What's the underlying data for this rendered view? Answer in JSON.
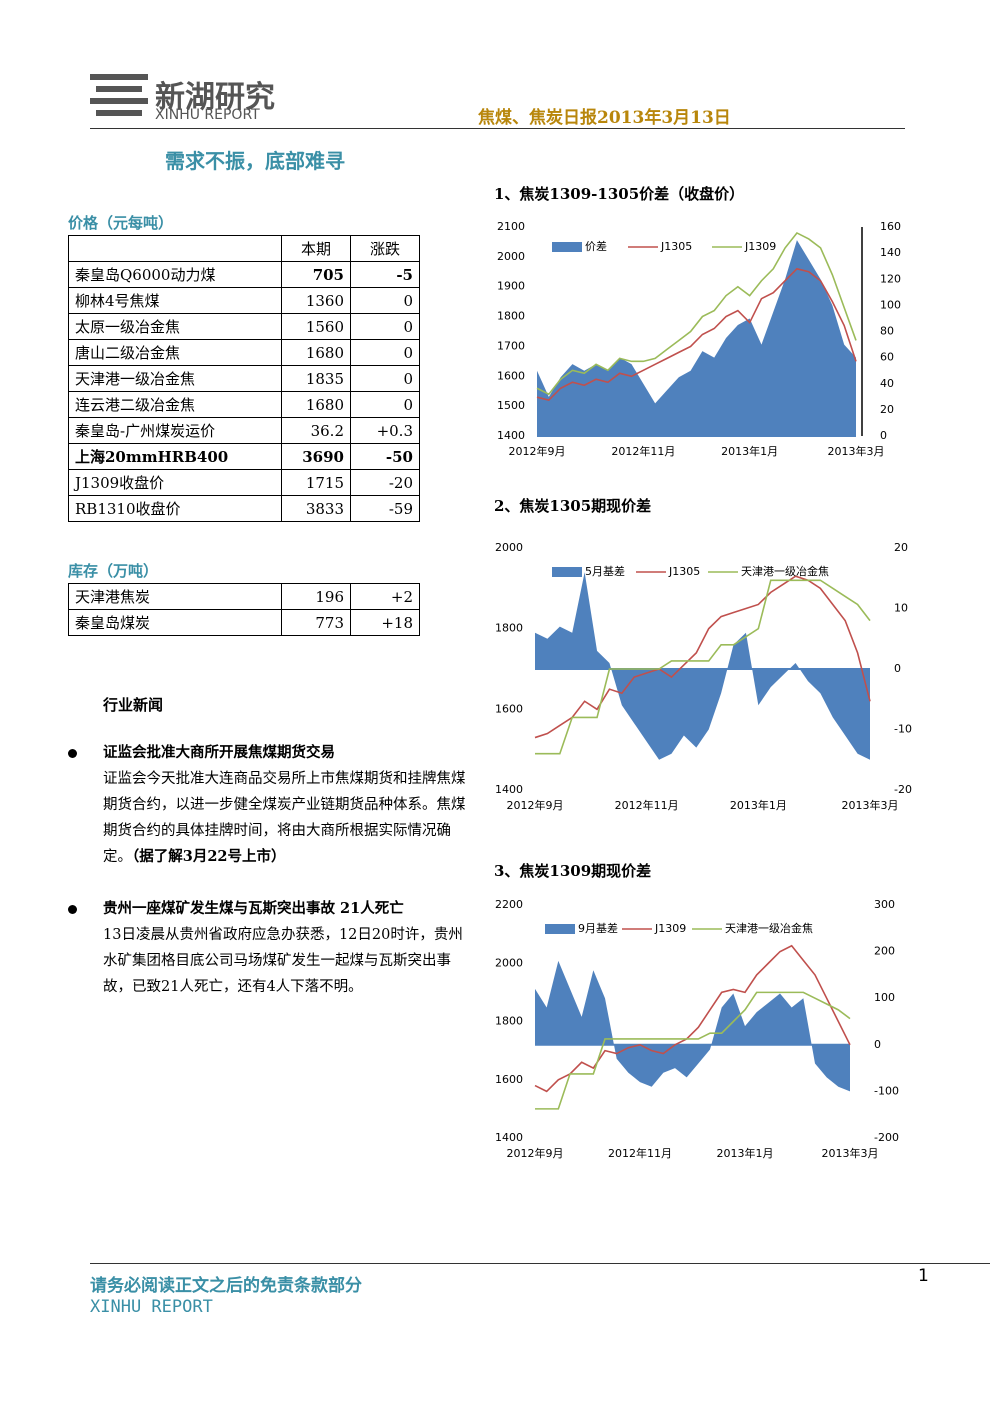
{
  "header": {
    "logo": "新湖研究",
    "logo_en": "XINHU REPORT",
    "report": "焦煤、焦炭日报2013年3月13日",
    "headline": "需求不振，底部难寻"
  },
  "price_table": {
    "title": "价格（元每吨）",
    "columns": [
      "本期",
      "涨跌"
    ],
    "rows": [
      [
        "秦皇岛Q6000动力煤",
        "705",
        "-5"
      ],
      [
        "柳林4号焦煤",
        "1360",
        "0"
      ],
      [
        "太原一级冶金焦",
        "1560",
        "0"
      ],
      [
        "唐山二级冶金焦",
        "1680",
        "0"
      ],
      [
        "天津港一级冶金焦",
        "1835",
        "0"
      ],
      [
        "连云港二级冶金焦",
        "1680",
        "0"
      ],
      [
        "秦皇岛-广州煤炭运价",
        "36.2",
        "+0.3"
      ],
      [
        "上海20mmHRB400",
        "3690",
        "-50"
      ],
      [
        "J1309收盘价",
        "1715",
        "-20"
      ],
      [
        "RB1310收盘价",
        "3833",
        "-59"
      ]
    ]
  },
  "stock_table": {
    "title": "库存（万吨）",
    "rows": [
      [
        "天津港焦炭",
        "196",
        "+2"
      ],
      [
        "秦皇岛煤炭",
        "773",
        "+18"
      ]
    ]
  },
  "news": {
    "title": "行业新闻",
    "items": [
      {
        "title": "证监会批准大商所开展焦煤期货交易",
        "body": "证监会今天批准大连商品交易所上市焦煤期货和挂牌焦煤期货合约，以进一步健全煤炭产业链期货品种体系。焦煤期货合约的具体挂牌时间，将由大商所根据实际情况确定。",
        "note": "（据了解3月22号上市）"
      },
      {
        "title": "贵州一座煤矿发生煤与瓦斯突出事故 21人死亡",
        "body": "13日凌晨从贵州省政府应急办获悉，12日20时许，贵州水矿集团格目底公司马场煤矿发生一起煤与瓦斯突出事故，已致21人死亡，还有4人下落不明。"
      }
    ]
  },
  "footer": {
    "disclaimer": "请务必阅读正文之后的免责条款部分",
    "brand": "XINHU REPORT",
    "page": "1"
  },
  "chart_data": [
    {
      "type": "line",
      "title": "1、焦炭1309-1305价差（收盘价）",
      "categories": [
        "2012年9月",
        null,
        null,
        null,
        null,
        null,
        null,
        null,
        null,
        "2012年11月",
        null,
        null,
        null,
        null,
        null,
        null,
        null,
        null,
        "2013年1月",
        null,
        null,
        null,
        null,
        null,
        null,
        null,
        null,
        "2013年3月"
      ],
      "ylim": [
        1400,
        2100
      ],
      "yticks": [
        1400,
        1500,
        1600,
        1700,
        1800,
        1900,
        2000,
        2100
      ],
      "y2lim": [
        0,
        160
      ],
      "y2ticks": [
        0,
        20,
        40,
        60,
        80,
        100,
        120,
        140,
        160
      ],
      "series": [
        {
          "name": "价差",
          "type": "area",
          "axis": "y2",
          "color": "#4f81bd",
          "values": [
            50,
            30,
            45,
            55,
            50,
            55,
            50,
            60,
            55,
            40,
            25,
            35,
            45,
            50,
            65,
            60,
            75,
            85,
            90,
            70,
            95,
            120,
            150,
            135,
            120,
            100,
            70,
            60
          ]
        },
        {
          "name": "J1305",
          "color": "#c0504d",
          "values": [
            1530,
            1520,
            1560,
            1580,
            1570,
            1590,
            1580,
            1610,
            1600,
            1620,
            1640,
            1660,
            1680,
            1700,
            1740,
            1760,
            1800,
            1820,
            1780,
            1860,
            1880,
            1920,
            1960,
            1950,
            1920,
            1850,
            1770,
            1650
          ]
        },
        {
          "name": "J1309",
          "color": "#9bbb59",
          "values": [
            1560,
            1540,
            1590,
            1620,
            1610,
            1640,
            1620,
            1660,
            1650,
            1650,
            1660,
            1690,
            1720,
            1750,
            1800,
            1820,
            1870,
            1900,
            1870,
            1920,
            1960,
            2030,
            2080,
            2060,
            2030,
            1940,
            1830,
            1720
          ]
        }
      ]
    },
    {
      "type": "line",
      "title": "2、焦炭1305期现价差",
      "categories": [
        "2012年9月",
        null,
        null,
        null,
        null,
        null,
        null,
        null,
        null,
        "2012年11月",
        null,
        null,
        null,
        null,
        null,
        null,
        null,
        null,
        "2013年1月",
        null,
        null,
        null,
        null,
        null,
        null,
        null,
        null,
        "2013年3月"
      ],
      "ylim": [
        1400,
        2000
      ],
      "yticks": [
        1400,
        1600,
        1800,
        2000
      ],
      "y2lim": [
        -200,
        200
      ],
      "y2ticks": [
        {
          "value": -200,
          "label": "-20"
        },
        {
          "value": -100,
          "label": "-10"
        },
        0,
        {
          "value": 100,
          "label": "10"
        },
        {
          "value": 200,
          "label": "20"
        }
      ],
      "series": [
        {
          "name": "5月基差",
          "type": "area",
          "axis": "y2",
          "color": "#4f81bd",
          "values": [
            60,
            50,
            70,
            60,
            160,
            30,
            10,
            -60,
            -90,
            -120,
            -150,
            -140,
            -110,
            -130,
            -100,
            -40,
            40,
            60,
            -60,
            -30,
            -10,
            10,
            -20,
            -40,
            -80,
            -110,
            -140,
            -150
          ]
        },
        {
          "name": "J1305",
          "color": "#c0504d",
          "values": [
            1530,
            1540,
            1560,
            1580,
            1620,
            1600,
            1650,
            1640,
            1680,
            1690,
            1700,
            1680,
            1710,
            1740,
            1800,
            1830,
            1840,
            1850,
            1860,
            1890,
            1910,
            1930,
            1920,
            1900,
            1860,
            1820,
            1740,
            1620
          ]
        },
        {
          "name": "天津港一级冶金焦",
          "color": "#9bbb59",
          "values": [
            1490,
            1490,
            1490,
            1580,
            1580,
            1580,
            1700,
            1700,
            1700,
            1700,
            1700,
            1720,
            1720,
            1720,
            1720,
            1760,
            1760,
            1780,
            1800,
            1920,
            1920,
            1920,
            1920,
            1920,
            1900,
            1880,
            1860,
            1820
          ]
        }
      ]
    },
    {
      "type": "line",
      "title": "3、焦炭1309期现价差",
      "categories": [
        "2012年9月",
        null,
        null,
        null,
        null,
        null,
        null,
        null,
        null,
        "2012年11月",
        null,
        null,
        null,
        null,
        null,
        null,
        null,
        null,
        "2013年1月",
        null,
        null,
        null,
        null,
        null,
        null,
        null,
        null,
        "2013年3月"
      ],
      "ylim": [
        1400,
        2200
      ],
      "yticks": [
        1400,
        1600,
        1800,
        2000,
        2200
      ],
      "y2lim": [
        -200,
        300
      ],
      "y2ticks": [
        -200,
        -100,
        0,
        100,
        200,
        300
      ],
      "series": [
        {
          "name": "9月基差",
          "type": "area",
          "axis": "y2",
          "color": "#4f81bd",
          "values": [
            120,
            80,
            180,
            120,
            60,
            160,
            100,
            -30,
            -60,
            -80,
            -90,
            -60,
            -50,
            -70,
            -40,
            -10,
            80,
            110,
            40,
            70,
            90,
            110,
            80,
            100,
            -40,
            -70,
            -90,
            -100
          ]
        },
        {
          "name": "J1309",
          "color": "#c0504d",
          "values": [
            1580,
            1560,
            1600,
            1620,
            1660,
            1640,
            1700,
            1690,
            1710,
            1720,
            1700,
            1690,
            1720,
            1740,
            1780,
            1840,
            1900,
            1910,
            1900,
            1960,
            2000,
            2040,
            2060,
            2010,
            1960,
            1880,
            1800,
            1720
          ]
        },
        {
          "name": "天津港一级冶金焦",
          "color": "#9bbb59",
          "values": [
            1500,
            1500,
            1500,
            1620,
            1620,
            1620,
            1740,
            1740,
            1740,
            1740,
            1740,
            1740,
            1740,
            1740,
            1740,
            1760,
            1760,
            1800,
            1840,
            1900,
            1900,
            1900,
            1900,
            1900,
            1880,
            1860,
            1840,
            1810
          ]
        }
      ]
    }
  ]
}
